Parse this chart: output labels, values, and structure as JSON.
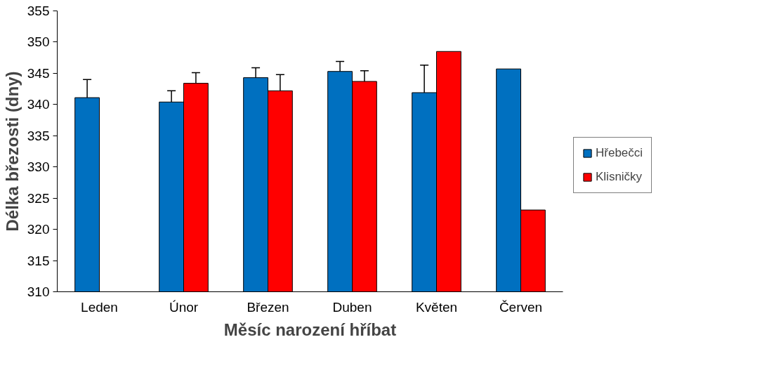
{
  "chart_data": {
    "type": "bar",
    "xlabel": "Měsíc narození hříbat",
    "ylabel": "Délka březosti (dny)",
    "categories": [
      "Leden",
      "Únor",
      "Březen",
      "Duben",
      "Květen",
      "Červen"
    ],
    "series": [
      {
        "name": "Hřebečci",
        "color": "#0070c0",
        "values": [
          341.1,
          340.4,
          344.3,
          345.3,
          341.9,
          345.7
        ],
        "errors": [
          [
            341.1,
            344.0
          ],
          [
            340.4,
            342.2
          ],
          [
            344.3,
            345.9
          ],
          [
            345.3,
            346.9
          ],
          [
            341.9,
            346.3
          ],
          null
        ]
      },
      {
        "name": "Klisničky",
        "color": "#ff0000",
        "values": [
          null,
          343.4,
          342.2,
          343.7,
          348.5,
          323.1
        ],
        "errors": [
          null,
          [
            343.4,
            345.1
          ],
          [
            342.2,
            344.8
          ],
          [
            343.7,
            345.4
          ],
          null,
          null
        ]
      }
    ],
    "ylim": [
      310,
      355
    ],
    "yticks": [
      310,
      315,
      320,
      325,
      330,
      335,
      340,
      345,
      350,
      355
    ],
    "grid": false,
    "legend": "right"
  }
}
